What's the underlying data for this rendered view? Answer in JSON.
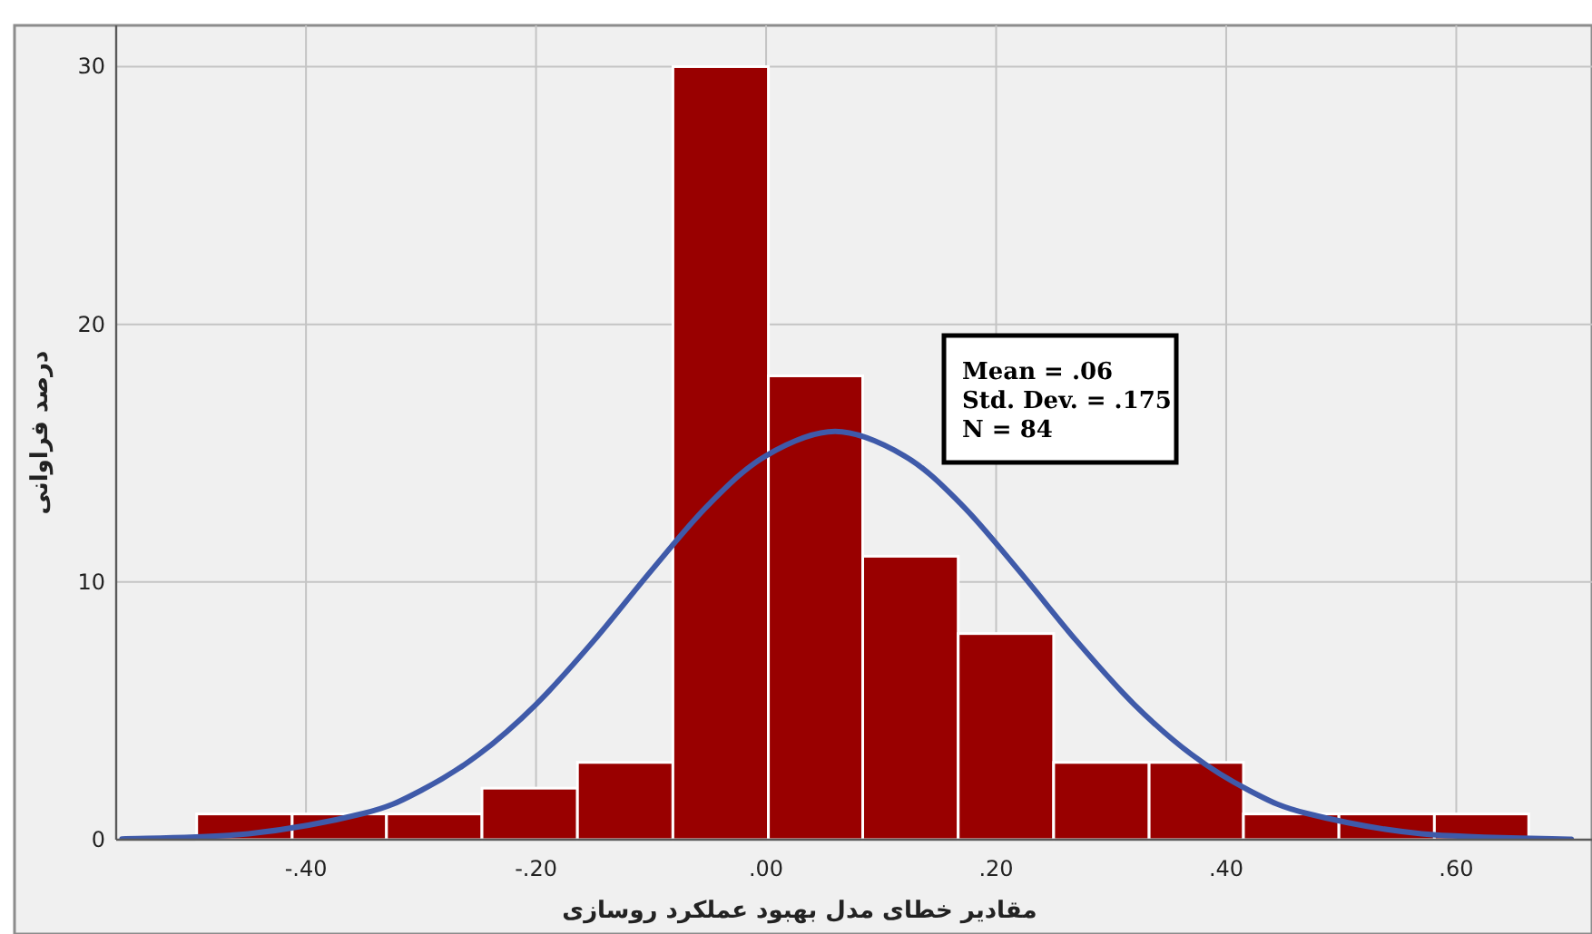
{
  "chart_data": {
    "type": "histogram",
    "xlabel": "مقادیر خطای مدل بهبود عملکرد روسازی",
    "ylabel": "درصد فراوانی",
    "annotations": [
      "Mean = .06",
      "Std. Dev. = .175",
      "N = 84"
    ],
    "bins": [
      -0.495,
      -0.412,
      -0.33,
      -0.247,
      -0.164,
      -0.081,
      0.002,
      0.084,
      0.167,
      0.25,
      0.333,
      0.415,
      0.498,
      0.581,
      0.663
    ],
    "values": [
      1,
      1,
      1,
      2,
      3,
      30,
      18,
      11,
      8,
      3,
      3,
      1,
      1,
      1
    ],
    "color": "#990000",
    "series": [
      {
        "type": "line",
        "color": "#3f5aa9",
        "x": [
          -0.56,
          -0.45,
          -0.35,
          -0.3,
          -0.25,
          -0.2,
          -0.15,
          -0.1,
          -0.05,
          0,
          0.06,
          0.12,
          0.17,
          0.22,
          0.27,
          0.32,
          0.37,
          0.42,
          0.47,
          0.57,
          0.7
        ],
        "values": [
          0.03,
          0.23,
          1.02,
          1.91,
          3.3,
          5.25,
          7.71,
          10.43,
          13.0,
          14.9,
          15.84,
          14.9,
          13.0,
          10.43,
          7.71,
          5.25,
          3.3,
          1.91,
          1.02,
          0.23,
          0.02
        ]
      }
    ],
    "xlim": [
      -0.565,
      0.718
    ],
    "ylim": [
      0,
      31.6
    ],
    "xticks": [
      {
        "value": -0.4,
        "label": "-.40"
      },
      {
        "value": -0.2,
        "label": "-.20"
      },
      {
        "value": 0,
        "label": ".00"
      },
      {
        "value": 0.2,
        "label": ".20"
      },
      {
        "value": 0.4,
        "label": ".40"
      },
      {
        "value": 0.6,
        "label": ".60"
      }
    ],
    "yticks": [
      0,
      10,
      20,
      30
    ],
    "grid": true
  }
}
